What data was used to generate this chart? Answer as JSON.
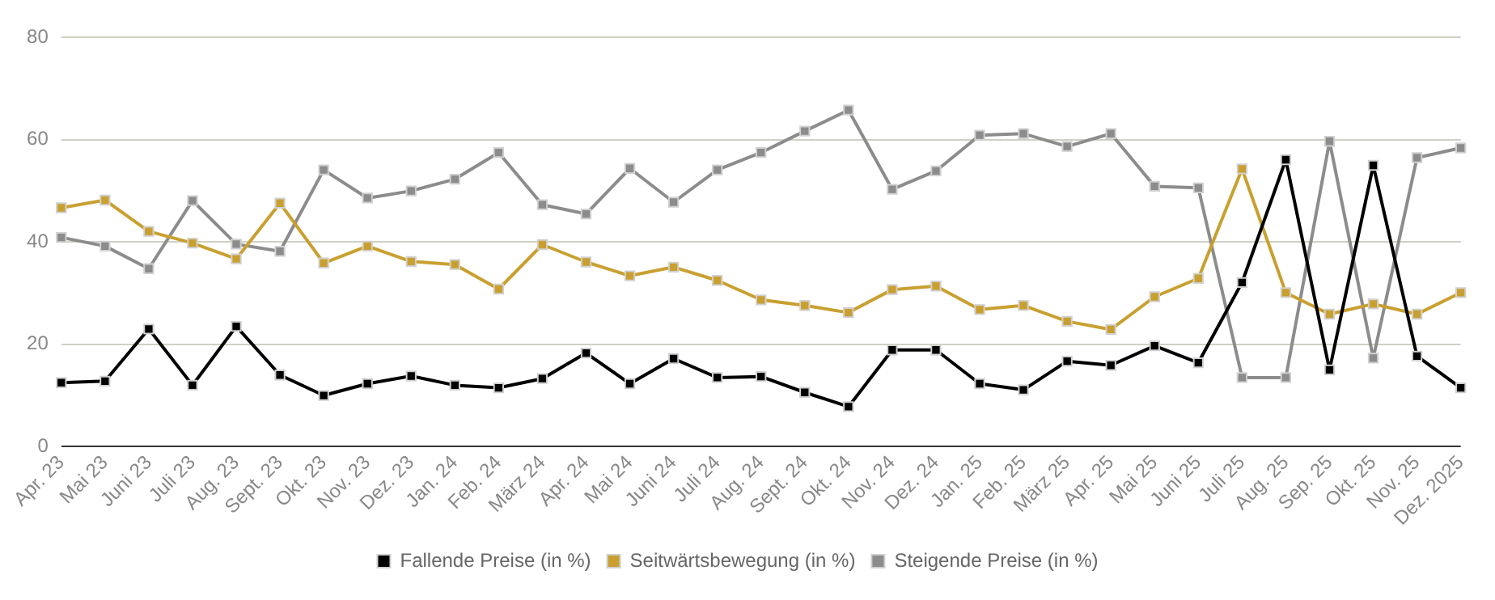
{
  "chart_data": {
    "type": "line",
    "categories": [
      "Apr. 23",
      "Mai 23",
      "Juni 23",
      "Juli 23",
      "Aug. 23",
      "Sept. 23",
      "Okt. 23",
      "Nov. 23",
      "Dez. 23",
      "Jan. 24",
      "Feb. 24",
      "März 24",
      "Apr. 24",
      "Mai 24",
      "Juni 24",
      "Juli 24",
      "Aug. 24",
      "Sept. 24",
      "Okt. 24",
      "Nov. 24",
      "Dez. 24",
      "Jan. 25",
      "Feb. 25",
      "März 25",
      "Apr. 25",
      "Mai 25",
      "Juni 25",
      "Juli 25",
      "Aug. 25",
      "Sep. 25",
      "Okt. 25",
      "Nov. 25",
      "Dez. 2025"
    ],
    "series": [
      {
        "name": "Fallende Preise (in %)",
        "color": "#000000",
        "values": [
          12.5,
          12.8,
          23,
          12,
          23.5,
          14,
          10,
          12.3,
          13.8,
          12,
          11.5,
          13.3,
          18.3,
          12.3,
          17.2,
          13.5,
          13.7,
          10.6,
          7.8,
          18.9,
          18.9,
          12.3,
          11.1,
          16.7,
          15.9,
          19.7,
          16.4,
          32.1,
          56.1,
          15,
          55,
          17.7,
          11.5
        ]
      },
      {
        "name": "Seitwärtsbewegung (in %)",
        "color": "#c9a030",
        "values": [
          46.7,
          48.2,
          42.1,
          39.8,
          36.7,
          47.6,
          35.9,
          39.2,
          36.2,
          35.6,
          30.8,
          39.5,
          36.1,
          33.4,
          35.1,
          32.5,
          28.7,
          27.6,
          26.2,
          30.7,
          31.4,
          26.8,
          27.6,
          24.5,
          22.9,
          29.3,
          32.9,
          54.3,
          30.1,
          25.9,
          27.9,
          25.9,
          30.1
        ]
      },
      {
        "name": "Steigende Preise (in %)",
        "color": "#8c8c8c",
        "values": [
          40.9,
          39.2,
          34.8,
          48.1,
          39.6,
          38.2,
          54.1,
          48.6,
          50,
          52.3,
          57.5,
          47.3,
          45.5,
          54.4,
          47.8,
          54.1,
          57.5,
          61.7,
          65.8,
          50.3,
          53.9,
          60.9,
          61.2,
          58.7,
          61.2,
          50.9,
          50.6,
          13.5,
          13.5,
          59.7,
          17.3,
          56.5,
          58.4
        ]
      }
    ],
    "ylim": [
      0,
      80
    ],
    "yticks": [
      0,
      20,
      40,
      60,
      80
    ],
    "grid": "y",
    "legend": "bottom",
    "marker": "square",
    "line_style": "solid"
  }
}
